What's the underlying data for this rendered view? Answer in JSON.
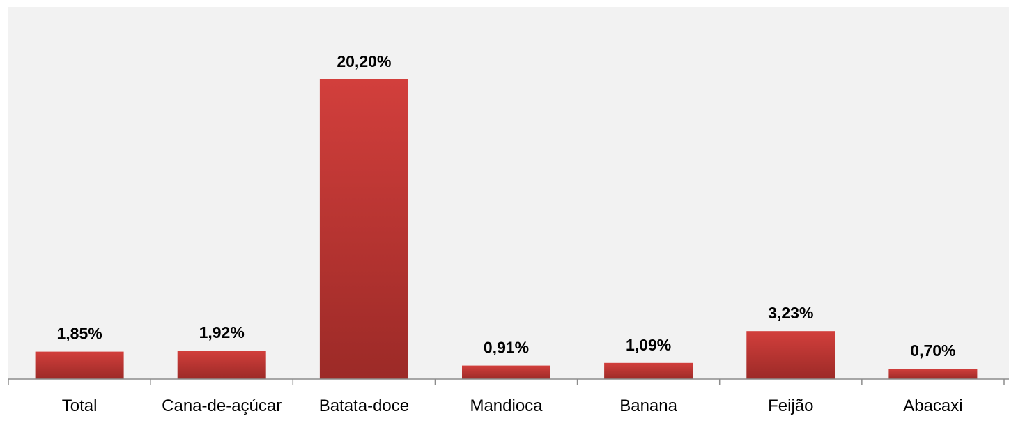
{
  "colors": {
    "plot_background": "#f2f2f2",
    "bar_top": "#d23f3c",
    "bar_bottom": "#9c2a27",
    "axis": "#8c8c8c",
    "text": "#000000"
  },
  "chart_data": {
    "type": "bar",
    "categories": [
      "Total",
      "Cana-de-açúcar",
      "Batata-doce",
      "Mandioca",
      "Banana",
      "Feijão",
      "Abacaxi"
    ],
    "values": [
      1.85,
      1.92,
      20.2,
      0.91,
      1.09,
      3.23,
      0.7
    ],
    "data_labels": [
      "1,85%",
      "1,92%",
      "20,20%",
      "0,91%",
      "1,09%",
      "3,23%",
      "0,70%"
    ],
    "title": "",
    "xlabel": "",
    "ylabel": "",
    "ylim": [
      0,
      24
    ],
    "grid": false,
    "legend": "none"
  }
}
